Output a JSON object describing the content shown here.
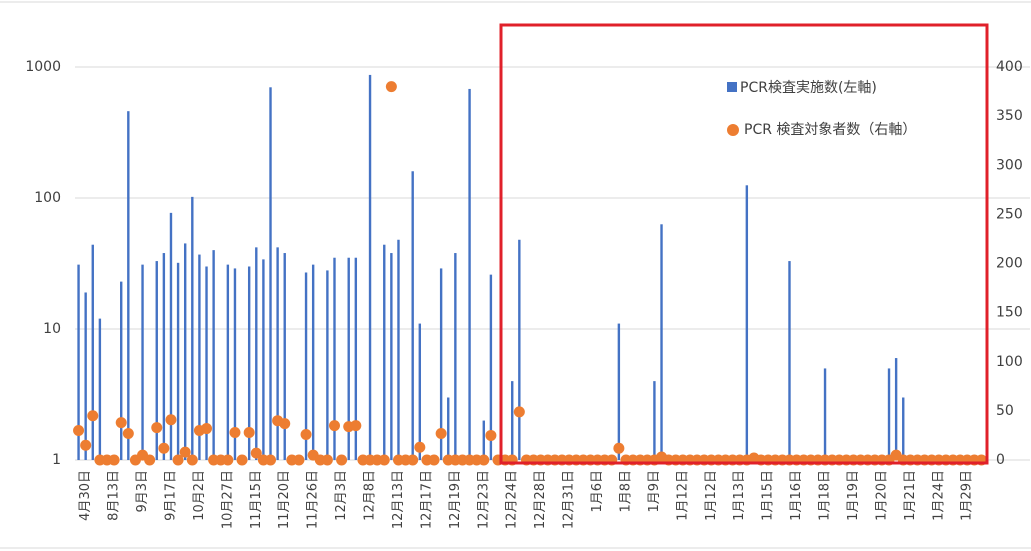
{
  "chart_data": {
    "type": "bar+scatter",
    "categories": [
      null,
      "4月30日",
      null,
      null,
      null,
      "8月13日",
      null,
      null,
      null,
      "9月3日",
      null,
      null,
      null,
      "9月17日",
      null,
      null,
      null,
      "10月2日",
      null,
      null,
      null,
      "10月27日",
      null,
      null,
      null,
      "11月15日",
      null,
      null,
      null,
      "11月20日",
      null,
      null,
      null,
      "11月26日",
      null,
      null,
      null,
      "12月3日",
      null,
      null,
      null,
      "12月8日",
      null,
      null,
      null,
      "12月13日",
      null,
      null,
      null,
      "12月17日",
      null,
      null,
      null,
      "12月19日",
      null,
      null,
      null,
      "12月23日",
      null,
      null,
      null,
      "12月24日",
      null,
      null,
      null,
      "12月28日",
      null,
      null,
      null,
      "12月31日",
      null,
      null,
      null,
      "1月6日",
      null,
      null,
      null,
      "1月8日",
      null,
      null,
      null,
      "1月9日",
      null,
      null,
      null,
      "1月12日",
      null,
      null,
      null,
      "1月12日",
      null,
      null,
      null,
      "1月13日",
      null,
      null,
      null,
      "1月15日",
      null,
      null,
      null,
      "1月16日",
      null,
      null,
      null,
      "1月18日",
      null,
      null,
      null,
      "1月19日",
      null,
      null,
      null,
      "1月20日",
      null,
      null,
      null,
      "1月21日",
      null,
      null,
      null,
      "1月24日",
      null,
      null,
      null,
      "1月29日",
      null,
      null
    ],
    "series": [
      {
        "name": "PCR検査実施数(左軸)",
        "color": "#4472c4",
        "axis": "y",
        "values": [
          31,
          19,
          44,
          12,
          1,
          1,
          23,
          460,
          1,
          31,
          1,
          33,
          38,
          77,
          32,
          45,
          102,
          37,
          30,
          40,
          1,
          31,
          29,
          1,
          30,
          42,
          34,
          700,
          42,
          38,
          1,
          1,
          27,
          31,
          1,
          28,
          35,
          1,
          35,
          35,
          1,
          870,
          1,
          44,
          38,
          48,
          1,
          160,
          11,
          1,
          1,
          29,
          3,
          38,
          1,
          680,
          1,
          2,
          26,
          1,
          1,
          4,
          48,
          1,
          1,
          1,
          1,
          1,
          1,
          1,
          1,
          1,
          1,
          1,
          1,
          1,
          11,
          1,
          1,
          1,
          1,
          4,
          63,
          1,
          1,
          1,
          1,
          1,
          1,
          1,
          1,
          1,
          1,
          1,
          125,
          1,
          1,
          1,
          1,
          1,
          33,
          1,
          1,
          1,
          1,
          5,
          1,
          1,
          1,
          1,
          1,
          1,
          1,
          1,
          5,
          6,
          3,
          1,
          1,
          1,
          1,
          1,
          1,
          1,
          1,
          1,
          1,
          1
        ]
      },
      {
        "name": "PCR 検査対象者数（右軸）",
        "color": "#ed7d31",
        "axis": "y2",
        "values": [
          30,
          15,
          45,
          0,
          0,
          0,
          38,
          27,
          0,
          5,
          0,
          33,
          12,
          41,
          0,
          8,
          0,
          30,
          32,
          0,
          0,
          0,
          28,
          0,
          28,
          7,
          0,
          0,
          40,
          37,
          0,
          0,
          26,
          5,
          0,
          0,
          35,
          0,
          34,
          35,
          0,
          0,
          0,
          0,
          380,
          0,
          0,
          0,
          13,
          0,
          0,
          27,
          0,
          0,
          0,
          0,
          0,
          0,
          25,
          0,
          0,
          0,
          49,
          0,
          0,
          0,
          0,
          0,
          0,
          0,
          0,
          0,
          0,
          0,
          0,
          0,
          12,
          0,
          0,
          0,
          0,
          0,
          3,
          0,
          0,
          0,
          0,
          0,
          0,
          0,
          0,
          0,
          0,
          0,
          0,
          2,
          0,
          0,
          0,
          0,
          0,
          0,
          0,
          0,
          0,
          0,
          0,
          0,
          0,
          0,
          0,
          0,
          0,
          0,
          0,
          5,
          0,
          0,
          0,
          0,
          0,
          0,
          0,
          0,
          0,
          0,
          0,
          0
        ]
      }
    ],
    "ylim": [
      1,
      1000
    ],
    "yticks": [
      1,
      10,
      100,
      1000
    ],
    "log_y": true,
    "grid": true,
    "y2lim": [
      0,
      400
    ],
    "y2ticks": [
      0,
      50,
      100,
      150,
      200,
      250,
      300,
      350,
      400
    ],
    "legend": "upper right"
  }
}
